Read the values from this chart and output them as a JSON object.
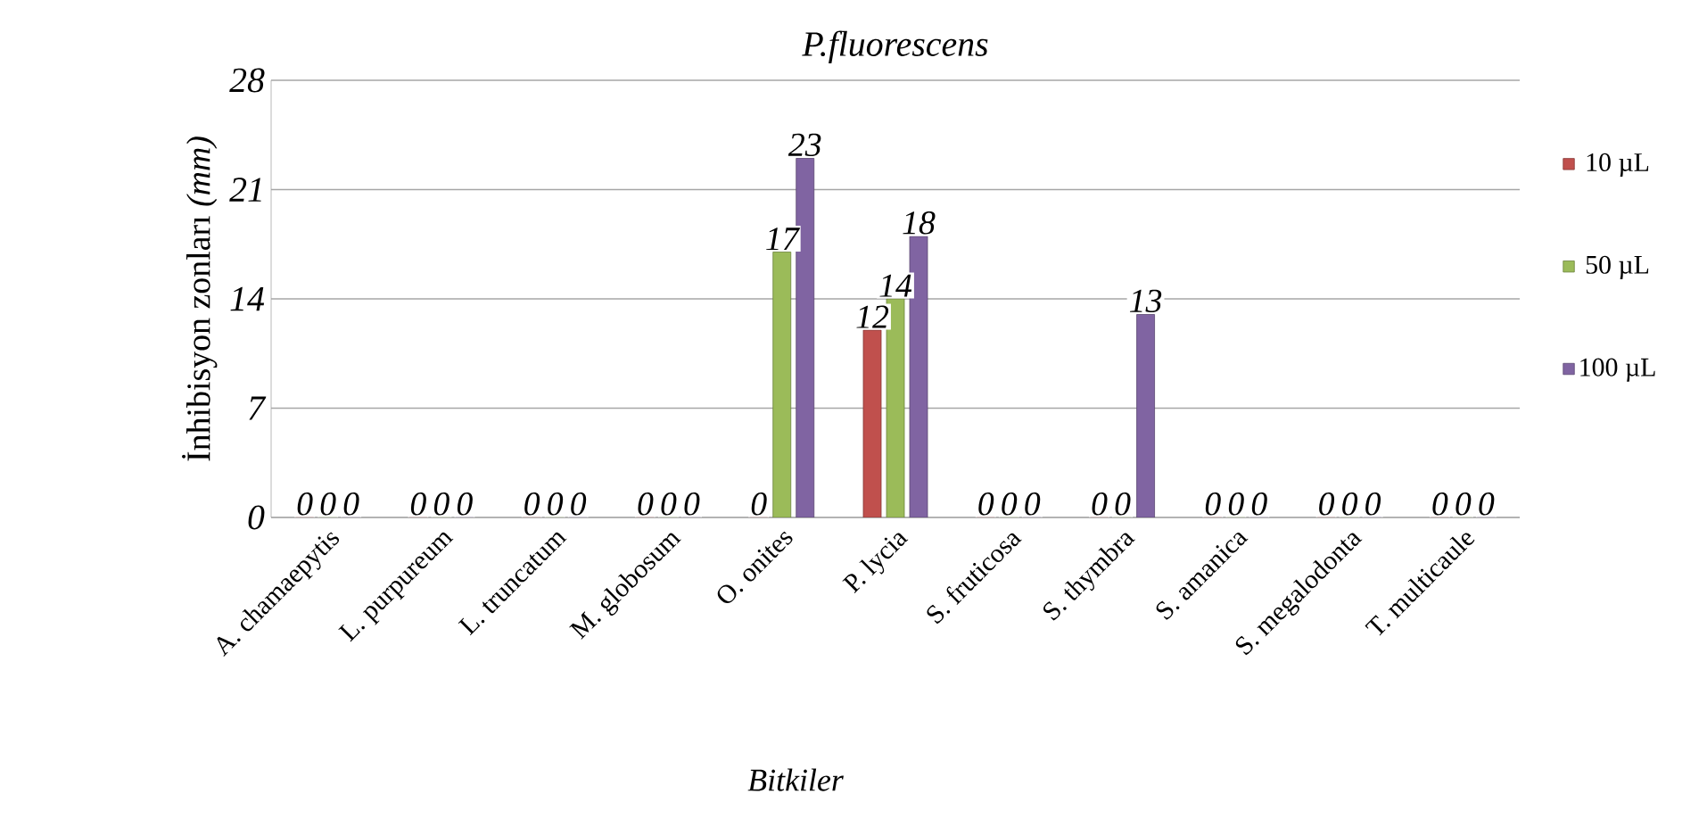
{
  "chart_data": {
    "type": "bar",
    "title": "P.fluorescens",
    "xlabel": "Bitkiler",
    "ylabel": "İnhibisyon zonları *(mm)*",
    "categories": [
      "A. chamaepytis",
      "L. purpureum",
      "L. truncatum",
      "M. globosum",
      "O. onites",
      "P. lycia",
      "S. fruticosa",
      "S. thymbra",
      "S. amanica",
      "S. megalodonta",
      "T. multicaule"
    ],
    "series": [
      {
        "name": "10 µL",
        "color": "#c0504d",
        "values": [
          0,
          0,
          0,
          0,
          0,
          12,
          0,
          0,
          0,
          0,
          0
        ]
      },
      {
        "name": "50 µL",
        "color": "#9bbb59",
        "values": [
          0,
          0,
          0,
          0,
          17,
          14,
          0,
          0,
          0,
          0,
          0
        ]
      },
      {
        "name": "100 µL",
        "color": "#8064a2",
        "values": [
          0,
          0,
          0,
          0,
          23,
          18,
          0,
          13,
          0,
          0,
          0
        ]
      }
    ],
    "ylim": [
      0,
      28
    ],
    "yticks": [
      0,
      7,
      14,
      21,
      28
    ],
    "grid": "y",
    "legend": "right",
    "data_labels": true
  }
}
